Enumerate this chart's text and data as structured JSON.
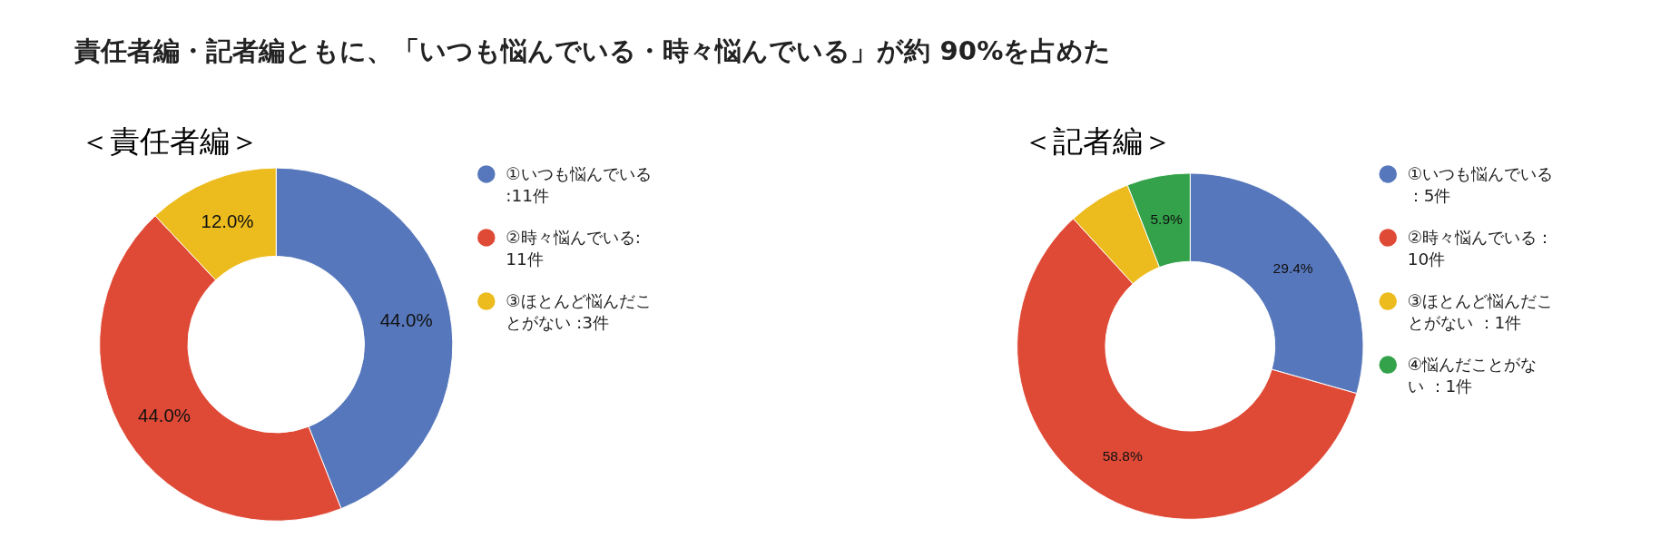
{
  "chart_data": [
    {
      "type": "donut",
      "title": "責任者編・記者編ともに、「いつも悩んでいる・時々悩んでいる」が約 90%を占めた",
      "subtitle": "＜責任者編＞",
      "categories": [
        "①いつも悩んでいる:11件",
        "②時々悩んでいる:11件",
        "③ほとんど悩んだことがない :3件"
      ],
      "values": [
        44.0,
        44.0,
        12.0
      ],
      "colors": [
        "#5677bb",
        "#df4a37",
        "#ecbb1e"
      ],
      "value_labels": [
        "44.0%",
        "44.0%",
        "12.0%"
      ],
      "legend": "right"
    },
    {
      "type": "donut",
      "title": "＜記者編＞",
      "categories": [
        "①いつも悩んでいる：5件",
        "②時々悩んでいる：10件",
        "③ほとんど悩んだことがない ：1件",
        "④悩んだことがない ：1件"
      ],
      "values": [
        29.4,
        58.8,
        5.9,
        5.9
      ],
      "colors": [
        "#5677bb",
        "#df4a37",
        "#ecbb1e",
        "#33a24a"
      ],
      "value_labels": [
        "29.4%",
        "58.8%",
        null,
        "5.9%"
      ],
      "legend": "right"
    }
  ]
}
